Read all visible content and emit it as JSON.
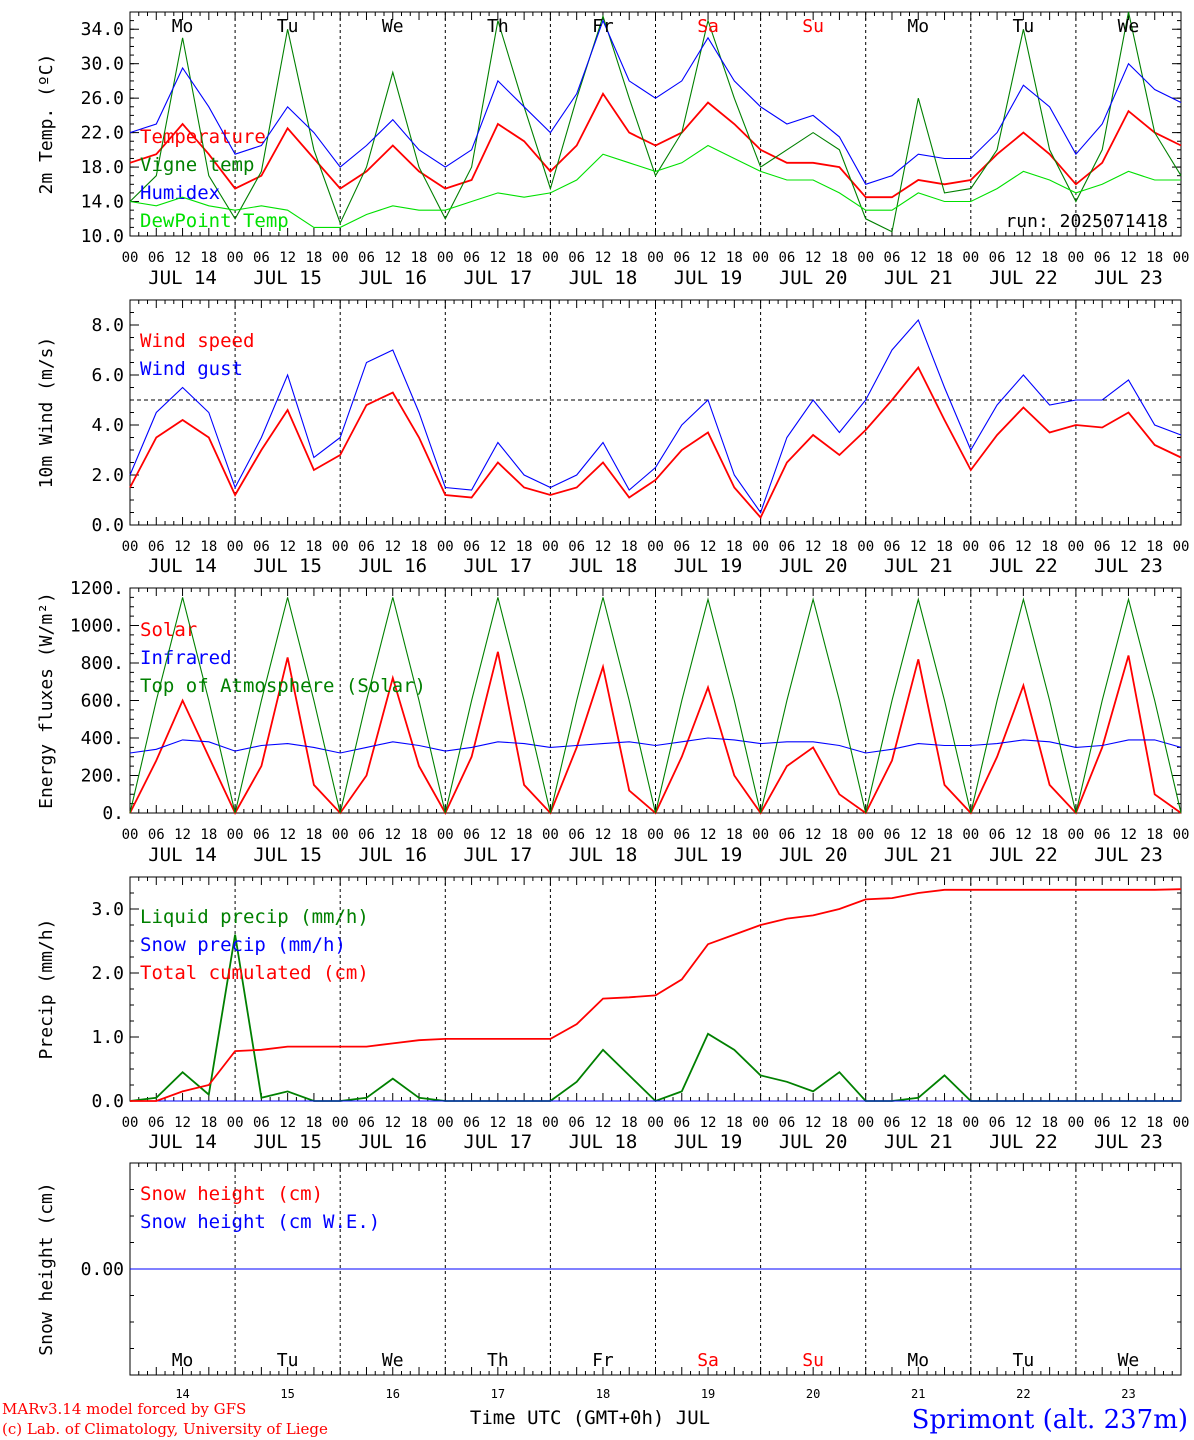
{
  "colors": {
    "temperature": "#ff0000",
    "vigne": "#008000",
    "humidex": "#0000ff",
    "dewpoint": "#00e000",
    "weekend": "#ff0000",
    "footer_left": "#ff0000",
    "station": "#0000ff"
  },
  "axis": {
    "hour_ticks": [
      "00",
      "06",
      "12",
      "18"
    ],
    "last_hour": "00",
    "date_labels": [
      "JUL 14",
      "JUL 15",
      "JUL 16",
      "JUL 17",
      "JUL 18",
      "JUL 19",
      "JUL 20",
      "JUL 21",
      "JUL 22",
      "JUL 23"
    ],
    "day_names": [
      "Mo",
      "Tu",
      "We",
      "Th",
      "Fr",
      "Sa",
      "Su",
      "Mo",
      "Tu",
      "We"
    ],
    "weekend_flags": [
      false,
      false,
      false,
      false,
      false,
      true,
      true,
      false,
      false,
      false
    ],
    "day_numbers": [
      "14",
      "15",
      "16",
      "17",
      "18",
      "19",
      "20",
      "21",
      "22",
      "23"
    ],
    "x_title": "Time UTC (GMT+0h) JUL"
  },
  "footer": {
    "line1": "MARv3.14 model forced by GFS",
    "line2": "(c) Lab. of Climatology, University of Liege",
    "station": "Sprimont (alt. 237m)"
  },
  "chart_data": [
    {
      "type": "line",
      "id": "temperature",
      "ylabel": "2m Temp. (ºC)",
      "ylim": [
        10,
        36
      ],
      "yticks": [
        "34.0",
        "30.0",
        "26.0",
        "22.0",
        "18.0",
        "14.0",
        "10.0"
      ],
      "ytick_values": [
        34,
        30,
        26,
        22,
        18,
        14,
        10
      ],
      "annotation": "run: 2025071418",
      "x_hours": [
        0,
        6,
        12,
        18,
        24,
        30,
        36,
        42,
        48,
        54,
        60,
        66,
        72,
        78,
        84,
        90,
        96,
        102,
        108,
        114,
        120,
        126,
        132,
        138,
        144,
        150,
        156,
        162,
        168,
        174,
        180,
        186,
        192,
        198,
        204,
        210,
        216,
        222,
        228,
        234,
        240
      ],
      "series": [
        {
          "name": "Temperature",
          "color": "#ff0000",
          "values": [
            18.5,
            19.5,
            23,
            19.5,
            15.5,
            17,
            22.5,
            19,
            15.5,
            17.5,
            20.5,
            17.5,
            15.5,
            16.5,
            23,
            21,
            17.5,
            20.5,
            26.5,
            22,
            20.5,
            22,
            25.5,
            23,
            20,
            18.5,
            18.5,
            18,
            14.5,
            14.5,
            16.5,
            16,
            16.5,
            19.5,
            22,
            19.5,
            16,
            18.5,
            24.5,
            22,
            20.5
          ]
        },
        {
          "name": "Vigne temp",
          "color": "#008000",
          "values": [
            14,
            17,
            33,
            17,
            12,
            17.5,
            34,
            20,
            11.5,
            18,
            29,
            18,
            12,
            18,
            35,
            25,
            15.5,
            26,
            35.5,
            26,
            17,
            22,
            35,
            26,
            18,
            20,
            22,
            20,
            12,
            10.5,
            26,
            15,
            15.5,
            20,
            34,
            20,
            14,
            20,
            36,
            22,
            17
          ]
        },
        {
          "name": "Humidex",
          "color": "#0000ff",
          "values": [
            22,
            23,
            29.5,
            25,
            19.5,
            20.5,
            25,
            22,
            18,
            20.5,
            23.5,
            20,
            18,
            20,
            28,
            25,
            22,
            26.5,
            35,
            28,
            26,
            28,
            33,
            28,
            25,
            23,
            24,
            21.5,
            16,
            17,
            19.5,
            19,
            19,
            22,
            27.5,
            25,
            19.5,
            23,
            30,
            27,
            25.5
          ]
        },
        {
          "name": "DewPoint Temp",
          "color": "#00e000",
          "values": [
            14,
            13.5,
            14.5,
            13.5,
            13,
            13.5,
            13,
            11,
            11,
            12.5,
            13.5,
            13,
            13,
            14,
            15,
            14.5,
            15,
            16.5,
            19.5,
            18.5,
            17.5,
            18.5,
            20.5,
            19,
            17.5,
            16.5,
            16.5,
            15,
            13,
            13,
            15,
            14,
            14,
            15.5,
            17.5,
            16.5,
            15,
            16,
            17.5,
            16.5,
            16.5
          ]
        }
      ]
    },
    {
      "type": "line",
      "id": "wind",
      "ylabel": "10m Wind (m/s)",
      "ylim": [
        0,
        9
      ],
      "yticks": [
        "8.0",
        "6.0",
        "4.0",
        "2.0",
        "0.0"
      ],
      "ytick_values": [
        8,
        6,
        4,
        2,
        0
      ],
      "reference_line": 5,
      "x_hours": [
        0,
        6,
        12,
        18,
        24,
        30,
        36,
        42,
        48,
        54,
        60,
        66,
        72,
        78,
        84,
        90,
        96,
        102,
        108,
        114,
        120,
        126,
        132,
        138,
        144,
        150,
        156,
        162,
        168,
        174,
        180,
        186,
        192,
        198,
        204,
        210,
        216,
        222,
        228,
        234,
        240
      ],
      "series": [
        {
          "name": "Wind speed",
          "color": "#ff0000",
          "values": [
            1.5,
            3.5,
            4.2,
            3.5,
            1.2,
            3,
            4.6,
            2.2,
            2.8,
            4.8,
            5.3,
            3.5,
            1.2,
            1.1,
            2.5,
            1.5,
            1.2,
            1.5,
            2.5,
            1.1,
            1.8,
            3,
            3.7,
            1.5,
            0.3,
            2.5,
            3.6,
            2.8,
            3.8,
            5,
            6.3,
            4.2,
            2.2,
            3.6,
            4.7,
            3.7,
            4,
            3.9,
            4.5,
            3.2,
            2.7
          ]
        },
        {
          "name": "Wind gust",
          "color": "#0000ff",
          "values": [
            2,
            4.5,
            5.5,
            4.5,
            1.5,
            3.5,
            6,
            2.7,
            3.5,
            6.5,
            7,
            4.5,
            1.5,
            1.4,
            3.3,
            2,
            1.5,
            2,
            3.3,
            1.4,
            2.3,
            4,
            5,
            2,
            0.5,
            3.5,
            5,
            3.7,
            5,
            7,
            8.2,
            5.5,
            3,
            4.8,
            6,
            4.8,
            5,
            5,
            5.8,
            4,
            3.6
          ]
        }
      ]
    },
    {
      "type": "line",
      "id": "energy",
      "ylabel": "Energy fluxes (W/m²)",
      "ylim": [
        0,
        1200
      ],
      "yticks": [
        "1200.",
        "1000.",
        "800.",
        "600.",
        "400.",
        "200.",
        "0."
      ],
      "ytick_values": [
        1200,
        1000,
        800,
        600,
        400,
        200,
        0
      ],
      "x_hours": [
        0,
        6,
        12,
        18,
        24,
        30,
        36,
        42,
        48,
        54,
        60,
        66,
        72,
        78,
        84,
        90,
        96,
        102,
        108,
        114,
        120,
        126,
        132,
        138,
        144,
        150,
        156,
        162,
        168,
        174,
        180,
        186,
        192,
        198,
        204,
        210,
        216,
        222,
        228,
        234,
        240
      ],
      "series": [
        {
          "name": "Solar",
          "color": "#ff0000",
          "values": [
            0,
            280,
            600,
            300,
            0,
            250,
            830,
            150,
            0,
            200,
            720,
            250,
            0,
            300,
            860,
            150,
            0,
            350,
            780,
            120,
            0,
            300,
            670,
            200,
            0,
            250,
            350,
            100,
            0,
            280,
            820,
            150,
            0,
            300,
            680,
            150,
            0,
            350,
            840,
            100,
            0
          ]
        },
        {
          "name": "Infrared",
          "color": "#0000ff",
          "values": [
            320,
            340,
            390,
            380,
            330,
            360,
            370,
            350,
            320,
            350,
            380,
            360,
            330,
            350,
            380,
            370,
            350,
            360,
            370,
            380,
            360,
            380,
            400,
            390,
            370,
            380,
            380,
            360,
            320,
            340,
            370,
            360,
            360,
            370,
            390,
            380,
            350,
            360,
            390,
            390,
            350
          ]
        },
        {
          "name": "Top of Atmosphere (Solar)",
          "color": "#008000",
          "values": [
            0,
            600,
            1150,
            600,
            0,
            600,
            1150,
            600,
            0,
            600,
            1150,
            600,
            0,
            600,
            1150,
            600,
            0,
            600,
            1150,
            600,
            0,
            600,
            1140,
            600,
            0,
            600,
            1140,
            600,
            0,
            600,
            1140,
            600,
            0,
            600,
            1140,
            600,
            0,
            600,
            1140,
            600,
            0
          ]
        }
      ]
    },
    {
      "type": "line",
      "id": "precip",
      "ylabel": "Precip (mm/h)",
      "ylim": [
        0,
        3.5
      ],
      "yticks": [
        "3.0",
        "2.0",
        "1.0",
        "0.0"
      ],
      "ytick_values": [
        3,
        2,
        1,
        0
      ],
      "x_hours": [
        0,
        6,
        12,
        18,
        24,
        30,
        36,
        42,
        48,
        54,
        60,
        66,
        72,
        78,
        84,
        90,
        96,
        102,
        108,
        114,
        120,
        126,
        132,
        138,
        144,
        150,
        156,
        162,
        168,
        174,
        180,
        186,
        192,
        198,
        204,
        210,
        216,
        222,
        228,
        234,
        240
      ],
      "series": [
        {
          "name": "Liquid precip (mm/h)",
          "color": "#008000",
          "values": [
            0,
            0.05,
            0.45,
            0.1,
            2.6,
            0.05,
            0.15,
            0,
            0,
            0.05,
            0.35,
            0.05,
            0,
            0,
            0,
            0,
            0,
            0.3,
            0.8,
            0.4,
            0,
            0.15,
            1.05,
            0.8,
            0.4,
            0.3,
            0.15,
            0.45,
            0,
            0,
            0.05,
            0.4,
            0,
            0,
            0,
            0,
            0,
            0,
            0,
            0,
            0
          ]
        },
        {
          "name": "Snow precip (mm/h)",
          "color": "#0000ff",
          "values": [
            0,
            0,
            0,
            0,
            0,
            0,
            0,
            0,
            0,
            0,
            0,
            0,
            0,
            0,
            0,
            0,
            0,
            0,
            0,
            0,
            0,
            0,
            0,
            0,
            0,
            0,
            0,
            0,
            0,
            0,
            0,
            0,
            0,
            0,
            0,
            0,
            0,
            0,
            0,
            0,
            0
          ]
        },
        {
          "name": "Total cumulated (cm)",
          "color": "#ff0000",
          "values": [
            0,
            0,
            0.15,
            0.25,
            0.78,
            0.8,
            0.85,
            0.85,
            0.85,
            0.85,
            0.9,
            0.95,
            0.97,
            0.97,
            0.97,
            0.97,
            0.97,
            1.2,
            1.6,
            1.62,
            1.65,
            1.9,
            2.45,
            2.6,
            2.75,
            2.85,
            2.9,
            3,
            3.15,
            3.17,
            3.25,
            3.3,
            3.3,
            3.3,
            3.3,
            3.3,
            3.3,
            3.3,
            3.3,
            3.3,
            3.31
          ]
        }
      ]
    },
    {
      "type": "line",
      "id": "snow",
      "ylabel": "Snow height (cm)",
      "ylim": [
        -1,
        1
      ],
      "yticks": [
        "0.00"
      ],
      "ytick_values": [
        0
      ],
      "x_hours": [
        0,
        240
      ],
      "series": [
        {
          "name": "Snow height (cm)",
          "color": "#ff0000",
          "values": [
            0,
            0
          ]
        },
        {
          "name": "Snow height (cm W.E.)",
          "color": "#0000ff",
          "values": [
            0,
            0
          ]
        }
      ]
    }
  ]
}
